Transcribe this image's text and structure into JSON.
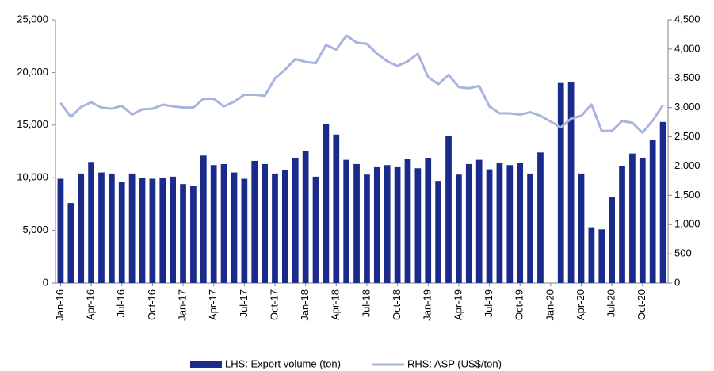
{
  "chart_data": {
    "type": "bar_line",
    "categories": [
      "Jan-16",
      null,
      null,
      "Apr-16",
      null,
      null,
      "Jul-16",
      null,
      null,
      "Oct-16",
      null,
      null,
      "Jan-17",
      null,
      null,
      "Apr-17",
      null,
      null,
      "Jul-17",
      null,
      null,
      "Oct-17",
      null,
      null,
      "Jan-18",
      null,
      null,
      "Apr-18",
      null,
      null,
      "Jul-18",
      null,
      null,
      "Oct-18",
      null,
      null,
      "Jan-19",
      null,
      null,
      "Apr-19",
      null,
      null,
      "Jul-19",
      null,
      null,
      "Oct-19",
      null,
      null,
      "Jan-20",
      null,
      null,
      "Apr-20",
      null,
      null,
      "Jul-20",
      null,
      null,
      "Oct-20",
      null,
      null
    ],
    "series": [
      {
        "name": "LHS: Export volume (ton)",
        "color": "#1b2b8c",
        "kind": "bar",
        "values": [
          9900,
          7600,
          10400,
          11500,
          10500,
          10400,
          9600,
          10400,
          10000,
          9900,
          10000,
          10100,
          9400,
          9200,
          12100,
          11200,
          11300,
          10500,
          9900,
          11600,
          11300,
          10400,
          10700,
          11900,
          12500,
          10100,
          15100,
          14100,
          11700,
          11300,
          10300,
          11000,
          11200,
          11000,
          11800,
          10900,
          11900,
          9700,
          14000,
          10300,
          11300,
          11700,
          10800,
          11400,
          11200,
          11400,
          10400,
          12400,
          null,
          19000,
          19100,
          10400,
          5300,
          5100,
          8200,
          11100,
          12300,
          11900,
          13600,
          15300
        ]
      },
      {
        "name": "RHS: ASP (US$/ton)",
        "color": "#a9b4dd",
        "kind": "line",
        "axis": "y2",
        "values": [
          3080,
          2840,
          3010,
          3090,
          3000,
          2980,
          3030,
          2880,
          2970,
          2980,
          3050,
          3020,
          3000,
          3000,
          3150,
          3150,
          3020,
          3100,
          3220,
          3220,
          3200,
          3500,
          3650,
          3830,
          3780,
          3760,
          4070,
          3990,
          4230,
          4110,
          4090,
          3920,
          3790,
          3710,
          3790,
          3920,
          3520,
          3400,
          3560,
          3350,
          3330,
          3370,
          3020,
          2900,
          2900,
          2880,
          2920,
          2860,
          2760,
          2660,
          2810,
          2860,
          3050,
          2600,
          2600,
          2770,
          2740,
          2570,
          2780,
          3040
        ]
      }
    ],
    "ylim": [
      0,
      25000
    ],
    "yticks": [
      0,
      {
        "value": 5000,
        "label": "5,000"
      },
      {
        "value": 10000,
        "label": "10,000"
      },
      {
        "value": 15000,
        "label": "15,000"
      },
      {
        "value": 20000,
        "label": "20,000"
      },
      {
        "value": 25000,
        "label": "25,000"
      }
    ],
    "y2lim": [
      0,
      4500
    ],
    "y2ticks": [
      0,
      500,
      {
        "value": 1000,
        "label": "1,000"
      },
      {
        "value": 1500,
        "label": "1,500"
      },
      {
        "value": 2000,
        "label": "2,000"
      },
      {
        "value": 2500,
        "label": "2,500"
      },
      {
        "value": 3000,
        "label": "3,000"
      },
      {
        "value": 3500,
        "label": "3,500"
      },
      {
        "value": 4000,
        "label": "4,000"
      },
      {
        "value": 4500,
        "label": "4,500"
      }
    ],
    "grid": false,
    "legend": "bottom"
  }
}
